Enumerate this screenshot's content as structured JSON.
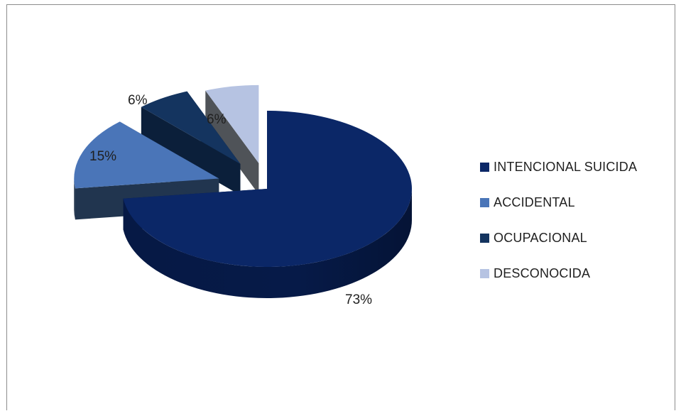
{
  "chart_data": {
    "type": "pie",
    "title": "",
    "slices": [
      {
        "name": "INTENCIONAL SUICIDA",
        "value": 73,
        "label": "73%",
        "color": "#0b2767",
        "side_color": "#061a48"
      },
      {
        "name": "ACCIDENTAL",
        "value": 15,
        "label": "15%",
        "color": "#4a75b8",
        "side_color": "#21354f"
      },
      {
        "name": "OCUPACIONAL",
        "value": 6,
        "label": "6%",
        "color": "#14345f",
        "side_color": "#0b1f3a"
      },
      {
        "name": "DESCONOCIDA",
        "value": 6,
        "label": "6%",
        "color": "#b6c3e2",
        "side_color": "#4f5358"
      }
    ],
    "legend_position": "right",
    "style": "3d-exploded"
  }
}
